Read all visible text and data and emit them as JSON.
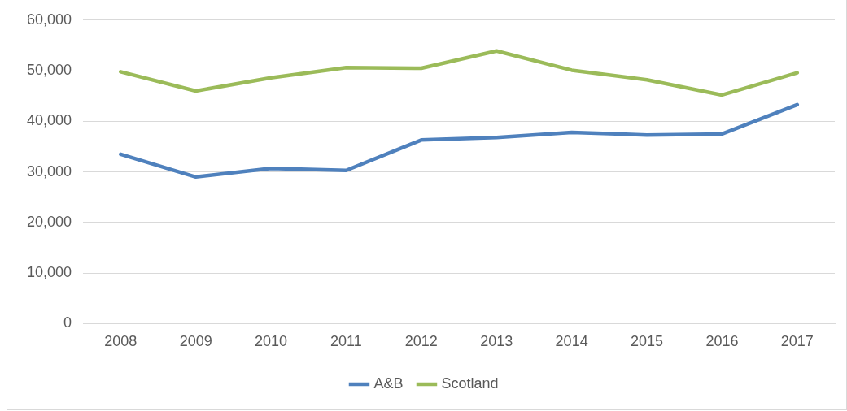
{
  "chart_data": {
    "type": "line",
    "categories": [
      "2008",
      "2009",
      "2010",
      "2011",
      "2012",
      "2013",
      "2014",
      "2015",
      "2016",
      "2017"
    ],
    "series": [
      {
        "name": "A&B",
        "color": "#4f81bd",
        "values": [
          33500,
          29000,
          30700,
          30300,
          36300,
          36800,
          37800,
          37300,
          37500,
          43300
        ]
      },
      {
        "name": "Scotland",
        "color": "#9bbb59",
        "values": [
          49800,
          46000,
          48600,
          50600,
          50500,
          53900,
          50100,
          48200,
          45200,
          49600
        ]
      }
    ],
    "ylim": [
      0,
      60000
    ],
    "yticks": [
      0,
      {
        "value": 10000,
        "label": "10,000"
      },
      {
        "value": 20000,
        "label": "20,000"
      },
      {
        "value": 30000,
        "label": "30,000"
      },
      {
        "value": 40000,
        "label": "40,000"
      },
      {
        "value": 50000,
        "label": "50,000"
      },
      {
        "value": 60000,
        "label": "60,000"
      }
    ],
    "grid": "y",
    "legend": "bottom",
    "marker": "none",
    "line_style": "solid"
  }
}
